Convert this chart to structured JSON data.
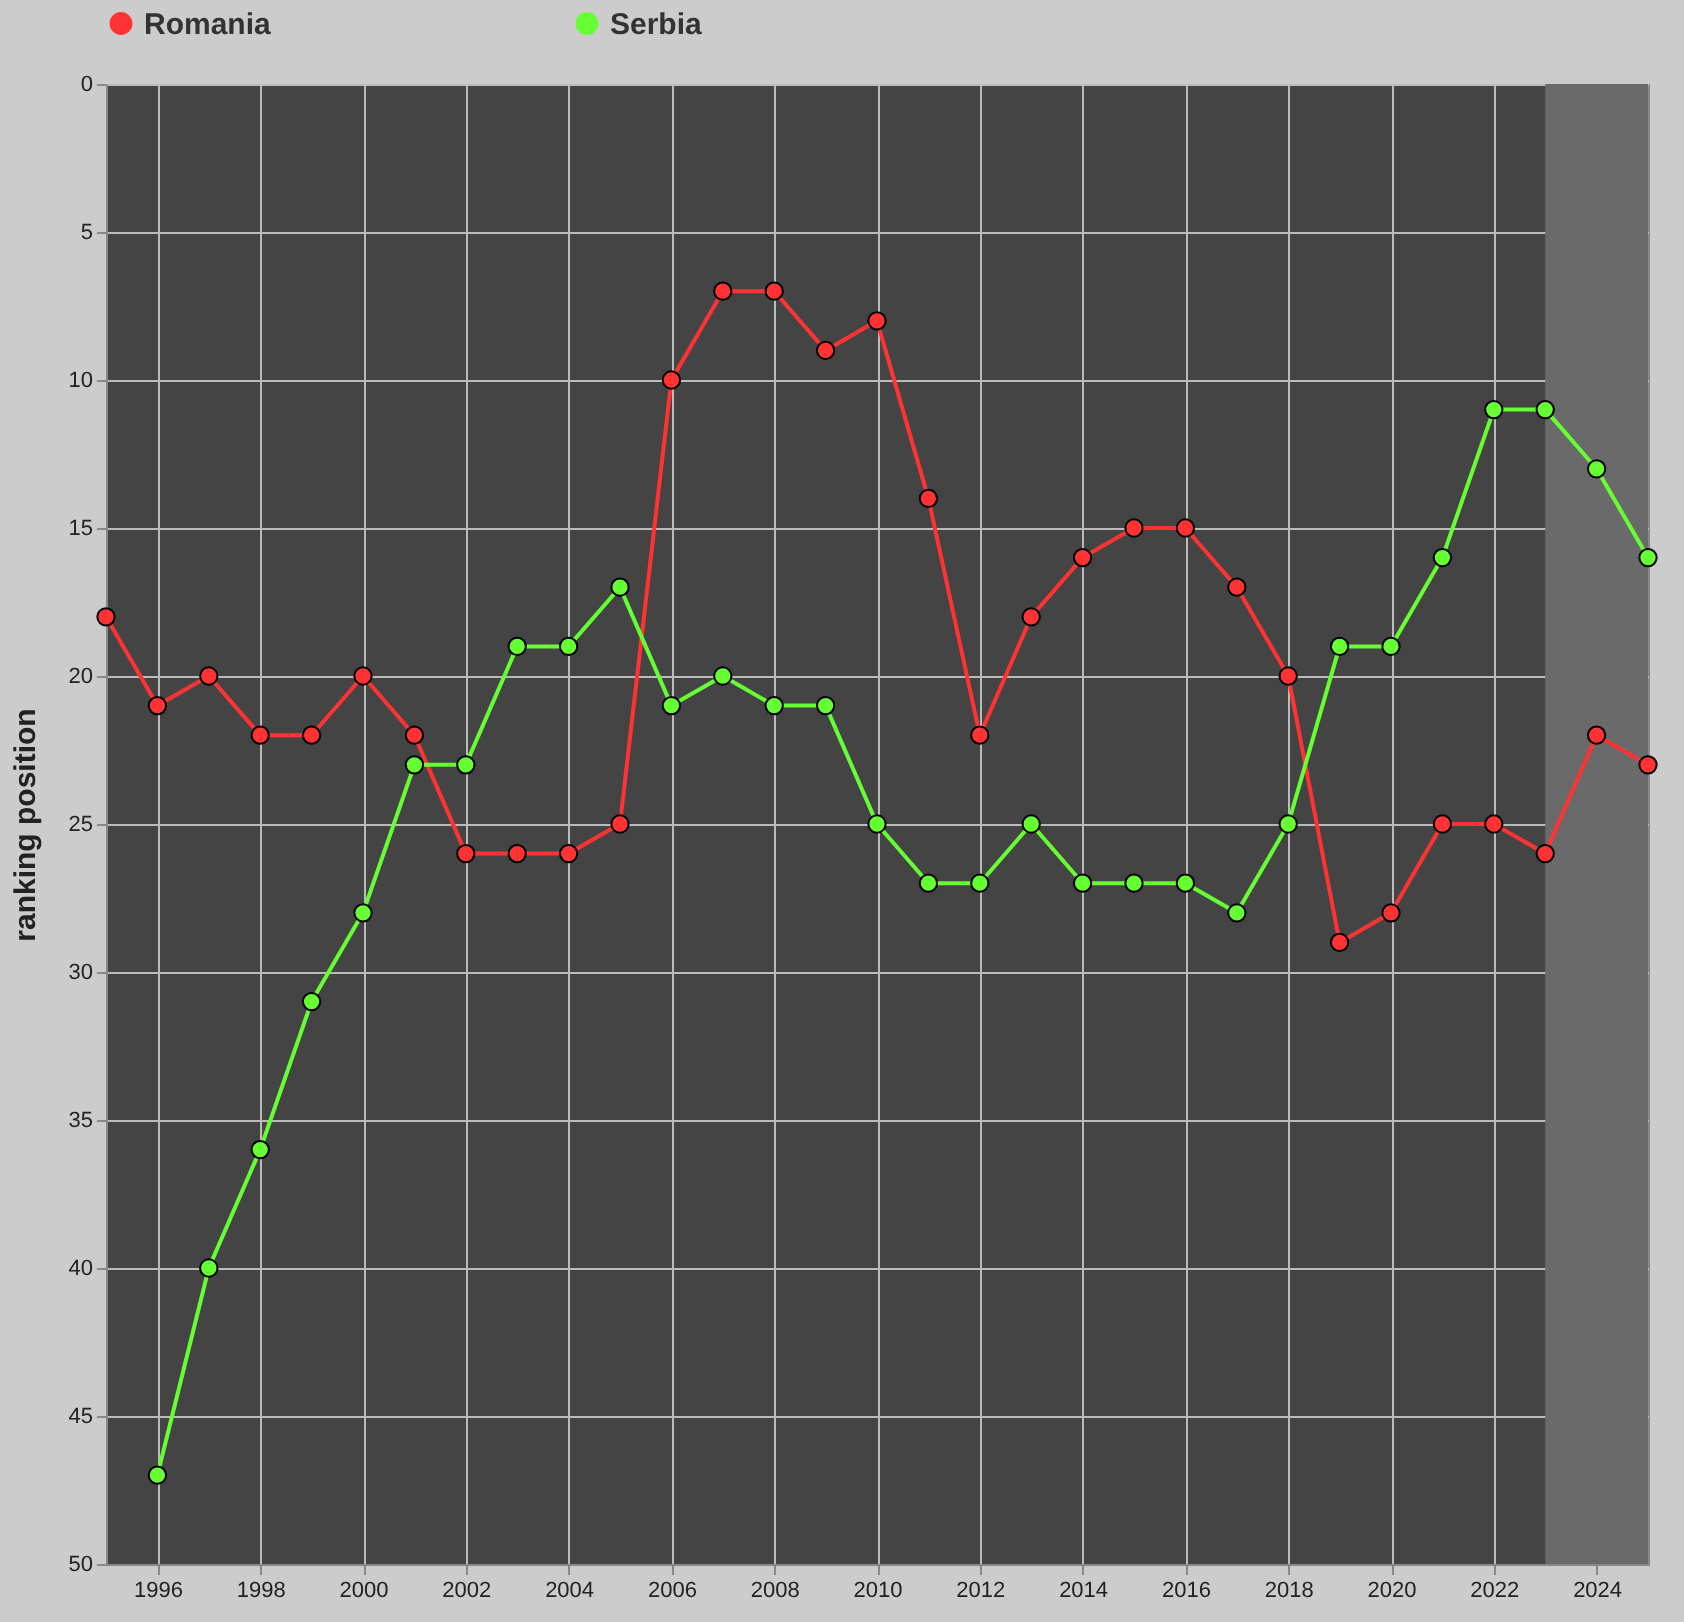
{
  "chart_data": {
    "type": "line",
    "ylabel": "ranking position",
    "x": [
      1995,
      1996,
      1997,
      1998,
      1999,
      2000,
      2001,
      2002,
      2003,
      2004,
      2005,
      2006,
      2007,
      2008,
      2009,
      2010,
      2011,
      2012,
      2013,
      2014,
      2015,
      2016,
      2017,
      2018,
      2019,
      2020,
      2021,
      2022,
      2023,
      2024,
      2025
    ],
    "series": [
      {
        "name": "Romania",
        "color": "#ff3333",
        "values": [
          18,
          21,
          20,
          22,
          22,
          20,
          22,
          26,
          26,
          26,
          25,
          10,
          7,
          7,
          9,
          8,
          14,
          22,
          18,
          16,
          15,
          15,
          17,
          20,
          29,
          28,
          25,
          25,
          26,
          22,
          23
        ]
      },
      {
        "name": "Serbia",
        "color": "#66ff33",
        "values": [
          null,
          47,
          40,
          36,
          31,
          28,
          23,
          23,
          19,
          19,
          17,
          21,
          20,
          21,
          21,
          25,
          27,
          27,
          25,
          27,
          27,
          27,
          28,
          25,
          19,
          19,
          16,
          11,
          11,
          13,
          16
        ]
      }
    ],
    "xlim": [
      1995,
      2025
    ],
    "xticks": [
      1996,
      1998,
      2000,
      2002,
      2004,
      2006,
      2008,
      2010,
      2012,
      2014,
      2016,
      2018,
      2020,
      2022,
      2024
    ],
    "ylim": [
      50,
      0
    ],
    "yticks": [
      0,
      5,
      10,
      15,
      20,
      25,
      30,
      35,
      40,
      45,
      50
    ],
    "bands": [
      {
        "axis": "x",
        "from": 2023,
        "to": 2025,
        "color": "#6a6a6a"
      }
    ],
    "grid": true,
    "legend": "top left",
    "marker": "circle",
    "line_style": "solid"
  }
}
